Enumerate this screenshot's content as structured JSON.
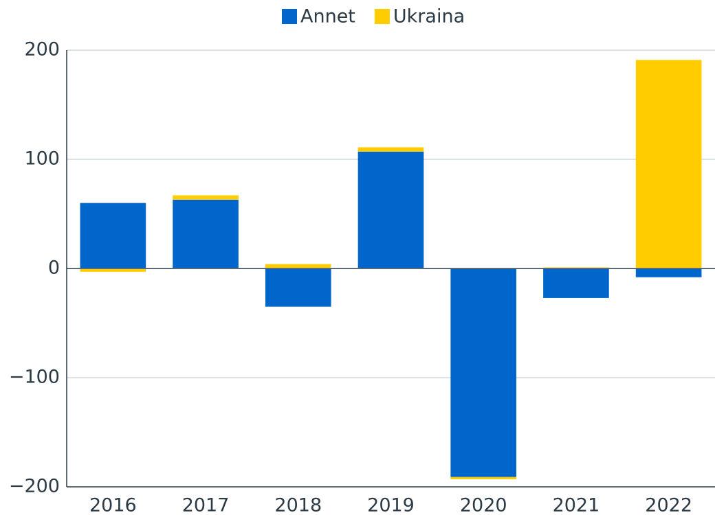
{
  "chart_data": {
    "type": "bar",
    "stacked": true,
    "categories": [
      "2016",
      "2017",
      "2018",
      "2019",
      "2020",
      "2021",
      "2022"
    ],
    "series": [
      {
        "name": "Annet",
        "color": "#0066cc",
        "values": [
          60,
          63,
          -35,
          107,
          -191,
          -27,
          -8
        ]
      },
      {
        "name": "Ukraina",
        "color": "#ffcc00",
        "values": [
          -3,
          4,
          4,
          4,
          -2,
          1,
          191
        ]
      }
    ],
    "ylim": [
      -200,
      200
    ],
    "yticks": [
      {
        "value": -200,
        "label": "−200"
      },
      {
        "value": -100,
        "label": "−100"
      },
      0,
      100,
      200
    ],
    "grid": true,
    "legend": "top"
  }
}
